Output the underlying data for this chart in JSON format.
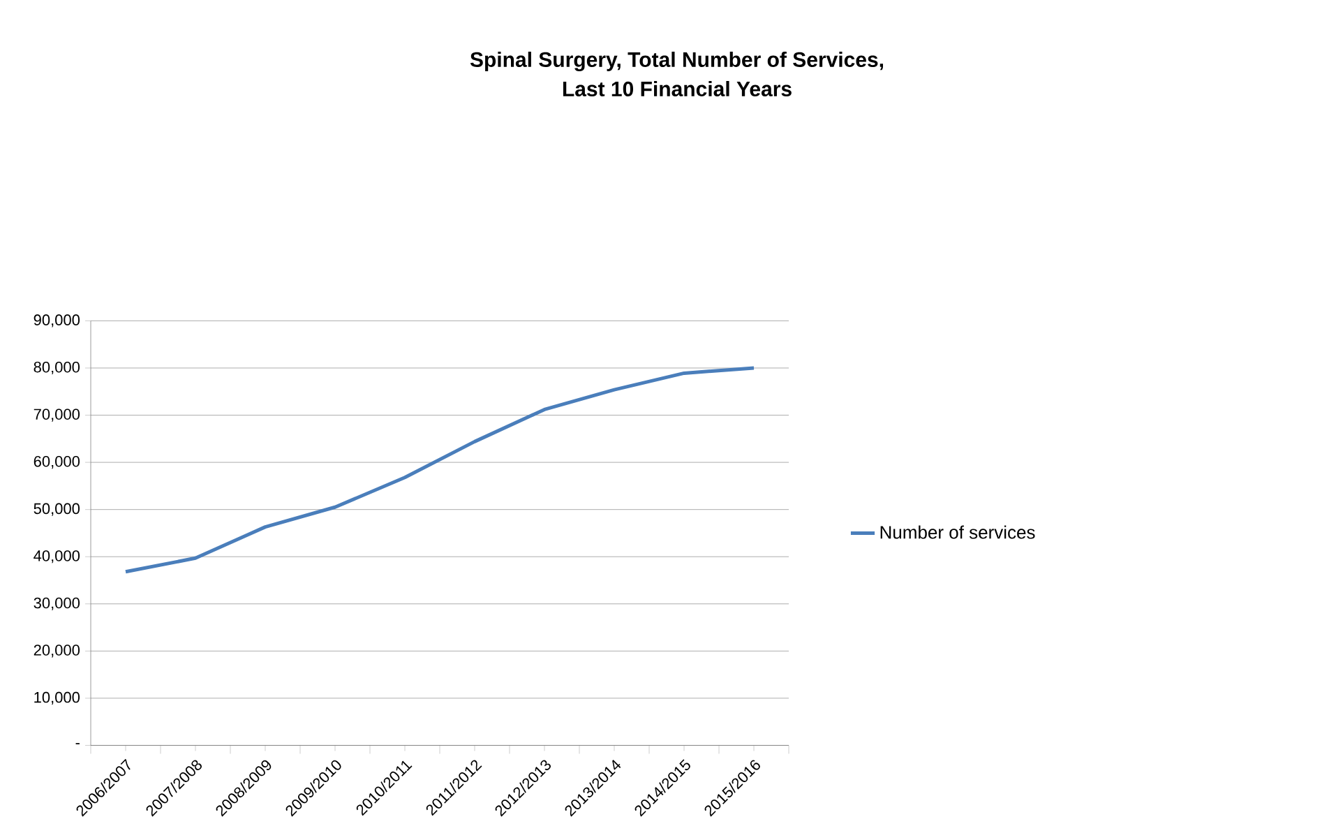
{
  "chart_data": {
    "type": "line",
    "title": "Spinal Surgery, Total Number of Services,\nLast 10 Financial Years",
    "categories": [
      "2006/2007",
      "2007/2008",
      "2008/2009",
      "2009/2010",
      "2010/2011",
      "2011/2012",
      "2012/2013",
      "2013/2014",
      "2014/2015",
      "2015/2016"
    ],
    "series": [
      {
        "name": "Number of services",
        "color": "#4a7ebb",
        "values": [
          36800,
          39700,
          46300,
          50500,
          56800,
          64400,
          71200,
          75400,
          78900,
          80000
        ]
      }
    ],
    "ylim": [
      0,
      90000
    ],
    "yticks": [
      {
        "value": 0,
        "label": "-"
      },
      {
        "value": 10000,
        "label": "10,000"
      },
      {
        "value": 20000,
        "label": "20,000"
      },
      {
        "value": 30000,
        "label": "30,000"
      },
      {
        "value": 40000,
        "label": "40,000"
      },
      {
        "value": 50000,
        "label": "50,000"
      },
      {
        "value": 60000,
        "label": "60,000"
      },
      {
        "value": 70000,
        "label": "70,000"
      },
      {
        "value": 80000,
        "label": "80,000"
      },
      {
        "value": 90000,
        "label": "90,000"
      }
    ],
    "grid": "y",
    "legend": "right",
    "marker": "none",
    "line_style": "solid"
  }
}
